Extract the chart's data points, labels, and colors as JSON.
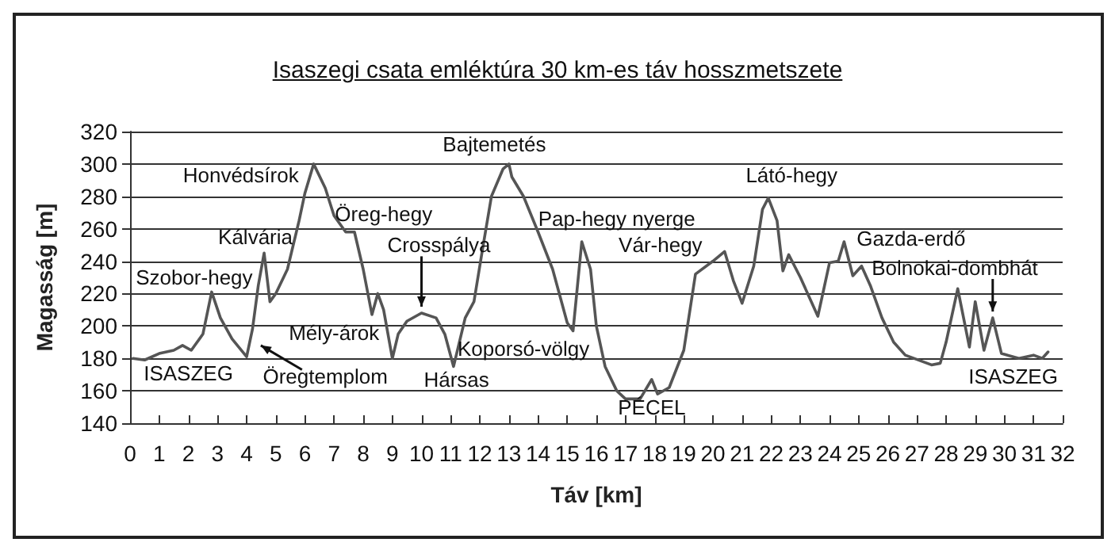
{
  "chart_data": {
    "type": "line",
    "title": "Isaszegi csata emléktúra 30 km-es táv hosszmetszete",
    "xlabel": "Táv [km]",
    "ylabel": "Magasság [m]",
    "x": [
      0.1,
      0.5,
      1,
      1.5,
      1.8,
      2.1,
      2.5,
      2.8,
      3.1,
      3.5,
      4.0,
      4.2,
      4.4,
      4.6,
      4.8,
      5.0,
      5.4,
      5.8,
      6.0,
      6.3,
      6.7,
      7.0,
      7.4,
      7.7,
      8.0,
      8.3,
      8.5,
      8.7,
      9.0,
      9.2,
      9.5,
      10.0,
      10.5,
      10.8,
      11.1,
      11.5,
      11.8,
      12.1,
      12.4,
      12.8,
      13.0,
      13.1,
      13.5,
      14.0,
      14.5,
      15.0,
      15.2,
      15.5,
      15.8,
      16.0,
      16.3,
      16.7,
      17.0,
      17.5,
      17.9,
      18.1,
      18.5,
      19.0,
      19.4,
      20.0,
      20.4,
      20.7,
      21.0,
      21.4,
      21.7,
      21.9,
      22.2,
      22.4,
      22.6,
      23.0,
      23.6,
      24.0,
      24.3,
      24.5,
      24.8,
      25.1,
      25.4,
      25.8,
      26.2,
      26.6,
      27.5,
      27.8,
      28.0,
      28.4,
      28.8,
      29.0,
      29.3,
      29.6,
      29.9,
      30.5,
      31.0,
      31.3,
      31.5
    ],
    "series": [
      {
        "color": "#555555",
        "values": [
          180,
          179,
          183,
          185,
          188,
          185,
          195,
          221,
          205,
          192,
          181,
          198,
          225,
          245,
          215,
          220,
          235,
          265,
          282,
          300,
          285,
          268,
          258,
          258,
          235,
          207,
          220,
          210,
          180,
          195,
          203,
          208,
          205,
          195,
          175,
          205,
          215,
          248,
          280,
          297,
          300,
          292,
          280,
          258,
          235,
          202,
          197,
          252,
          235,
          200,
          175,
          160,
          155,
          155,
          167,
          158,
          162,
          185,
          232,
          240,
          246,
          228,
          214,
          237,
          272,
          279,
          265,
          234,
          244,
          230,
          206,
          239,
          240,
          252,
          231,
          237,
          225,
          205,
          190,
          182,
          176,
          177,
          190,
          223,
          187,
          215,
          185,
          205,
          183,
          180,
          182,
          180,
          184
        ]
      }
    ],
    "xlim": [
      0,
      32
    ],
    "xticks": [
      0,
      1,
      2,
      3,
      4,
      5,
      6,
      7,
      8,
      9,
      10,
      11,
      12,
      13,
      14,
      15,
      16,
      17,
      18,
      19,
      20,
      21,
      22,
      23,
      24,
      25,
      26,
      27,
      28,
      29,
      30,
      31,
      32
    ],
    "ylim": [
      140,
      320
    ],
    "yticks": [
      140,
      160,
      180,
      200,
      220,
      240,
      260,
      280,
      300,
      320
    ],
    "grid": "y",
    "marker": "none",
    "line_style": "solid",
    "annotations": [
      "Szobor-hegy",
      "ISASZEG",
      "Kálvária",
      "Honvédsírok",
      "Öreg-hegy",
      {
        "text": "Crosspálya",
        "x": 10.0,
        "y": 208
      },
      "Mély-árok",
      {
        "text": "Öregtemplom",
        "x": 4.3,
        "y": 190
      },
      "Hársas",
      "Koporsó-völgy",
      "Bajtemetés",
      "Pap-hegy nyerge",
      "Vár-hegy",
      "PÉCEL",
      "Látó-hegy",
      "Gazda-erdő",
      {
        "text": "Bolnokai-dombhát",
        "x": 29.6,
        "y": 205
      },
      "ISASZEG"
    ]
  }
}
